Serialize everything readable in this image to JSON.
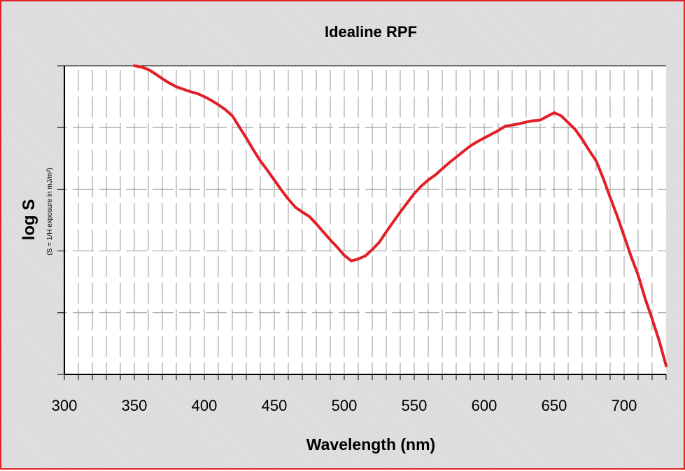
{
  "chart_data": {
    "type": "line",
    "title": "Idealine RPF",
    "xlabel": "Wavelength (nm)",
    "ylabel": "log S",
    "ylabel_sub": "(S = 1/H exposure in mJ/m²)",
    "xlim": [
      300,
      730
    ],
    "ylim": [
      0,
      5
    ],
    "x_ticks": [
      300,
      350,
      400,
      450,
      500,
      550,
      600,
      650,
      700
    ],
    "x_tick_labels": [
      "300",
      "350",
      "400",
      "450",
      "500",
      "550",
      "600",
      "650",
      "700"
    ],
    "x_minor_step": 10,
    "y_ticks": [
      0,
      1,
      2,
      3,
      4,
      5
    ],
    "y_tick_labels": [],
    "grid": true,
    "line_color": "#e21f26",
    "series": [
      {
        "x": [
          350,
          355,
          360,
          365,
          370,
          375,
          380,
          385,
          390,
          395,
          400,
          405,
          410,
          415,
          420,
          425,
          430,
          435,
          440,
          445,
          450,
          455,
          460,
          465,
          470,
          475,
          480,
          485,
          490,
          495,
          500,
          505,
          510,
          515,
          520,
          525,
          530,
          535,
          540,
          545,
          550,
          555,
          560,
          565,
          570,
          575,
          580,
          585,
          590,
          595,
          600,
          605,
          610,
          615,
          620,
          625,
          630,
          635,
          640,
          645,
          650,
          655,
          660,
          665,
          670,
          675,
          680,
          685,
          690,
          695,
          700,
          705,
          710,
          715,
          720,
          725,
          730
        ],
        "values": [
          5.0,
          4.98,
          4.94,
          4.87,
          4.79,
          4.72,
          4.66,
          4.62,
          4.58,
          4.55,
          4.5,
          4.44,
          4.37,
          4.29,
          4.19,
          4.01,
          3.83,
          3.64,
          3.46,
          3.31,
          3.15,
          2.99,
          2.84,
          2.71,
          2.63,
          2.56,
          2.44,
          2.31,
          2.18,
          2.06,
          1.93,
          1.84,
          1.87,
          1.92,
          2.02,
          2.14,
          2.31,
          2.47,
          2.63,
          2.78,
          2.93,
          3.05,
          3.15,
          3.23,
          3.33,
          3.43,
          3.52,
          3.61,
          3.7,
          3.77,
          3.83,
          3.89,
          3.95,
          4.02,
          4.04,
          4.06,
          4.09,
          4.11,
          4.12,
          4.18,
          4.24,
          4.19,
          4.08,
          3.97,
          3.81,
          3.63,
          3.46,
          3.18,
          2.87,
          2.57,
          2.24,
          1.91,
          1.61,
          1.23,
          0.9,
          0.55,
          0.14
        ]
      }
    ]
  }
}
